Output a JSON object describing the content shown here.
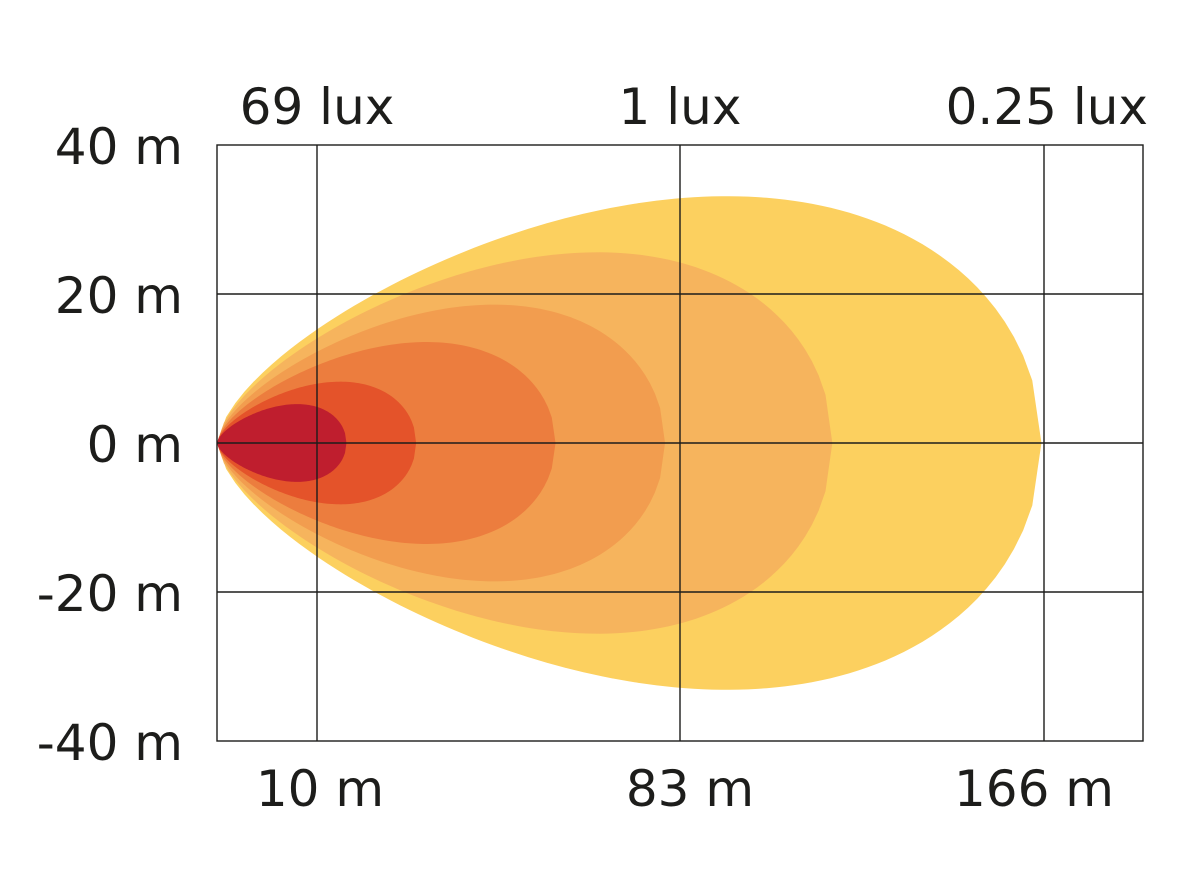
{
  "chart_data": {
    "type": "area",
    "title": "",
    "xlabel": "",
    "ylabel": "",
    "grid": true,
    "lux_labels": [
      "69 lux",
      "1 lux",
      "0.25 lux"
    ],
    "y_ticks": [
      {
        "value": 40,
        "label": "40 m"
      },
      {
        "value": 20,
        "label": "20 m"
      },
      {
        "value": 0,
        "label": "0 m"
      },
      {
        "value": -20,
        "label": "-20 m"
      },
      {
        "value": -40,
        "label": "-40 m"
      }
    ],
    "x_ticks": [
      {
        "value": 10,
        "label": "10 m"
      },
      {
        "value": 83,
        "label": "83 m"
      },
      {
        "value": 166,
        "label": "166 m"
      }
    ],
    "ylim": [
      -40,
      40
    ],
    "x_reach_ticks": [
      10,
      83,
      166
    ],
    "x_reach_tick_positions": [
      1,
      4.66,
      8.32
    ],
    "x_reach_extent": [
      0,
      9.3
    ],
    "beam_zones": [
      {
        "reach": 8.28,
        "half_width": 33,
        "color": "#fcd05f"
      },
      {
        "reach": 6.18,
        "half_width": 25.5,
        "color": "#f6b45d"
      },
      {
        "reach": 4.5,
        "half_width": 18.5,
        "color": "#f29d4f"
      },
      {
        "reach": 3.4,
        "half_width": 13.5,
        "color": "#ec7d3e"
      },
      {
        "reach": 2.0,
        "half_width": 8.2,
        "color": "#e4532a"
      },
      {
        "reach": 1.3,
        "half_width": 5.2,
        "color": "#bf1e2e"
      }
    ]
  }
}
